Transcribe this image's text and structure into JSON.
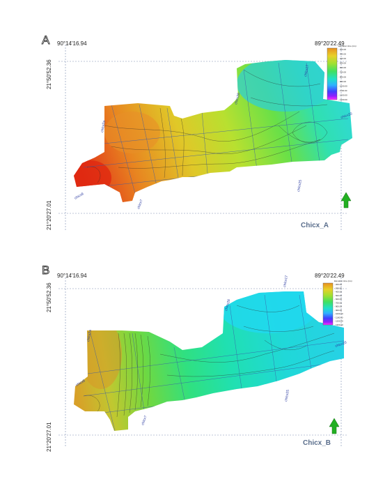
{
  "panels": [
    {
      "letter": "A",
      "lon_left": "90°14'16.94",
      "lon_right": "89°20'22.49",
      "lat_top": "21°50'52.36",
      "lat_bottom": "21°20'27.01",
      "caption": "Chicx_A"
    },
    {
      "letter": "B",
      "lon_left": "90°14'16.94",
      "lon_right": "89°20'22.49",
      "lat_top": "21°50'52.36",
      "lat_bottom": "21°20'27.01",
      "caption": "Chicx_B"
    }
  ],
  "legend": {
    "title": "Elevation time (ms)",
    "ticks": [
      "200.00",
      "300.00",
      "400.00",
      "500.00",
      "600.00",
      "700.00",
      "800.00",
      "900.00",
      "1000.00",
      "1100.00",
      "1200.00",
      "1300.00"
    ]
  },
  "colors": {
    "ramp": [
      "#e8b020",
      "#c8dc28",
      "#60e040",
      "#20e0a0",
      "#20d8e0",
      "#4080ff",
      "#7020ff",
      "#ff30ff"
    ],
    "grid_line": "#3a5aa8",
    "arrow": "#22b022"
  },
  "line_labels": [
    "chicx2a",
    "chicx17",
    "chicx7",
    "chicx25",
    "chicx20",
    "chicx26",
    "chicx9"
  ]
}
